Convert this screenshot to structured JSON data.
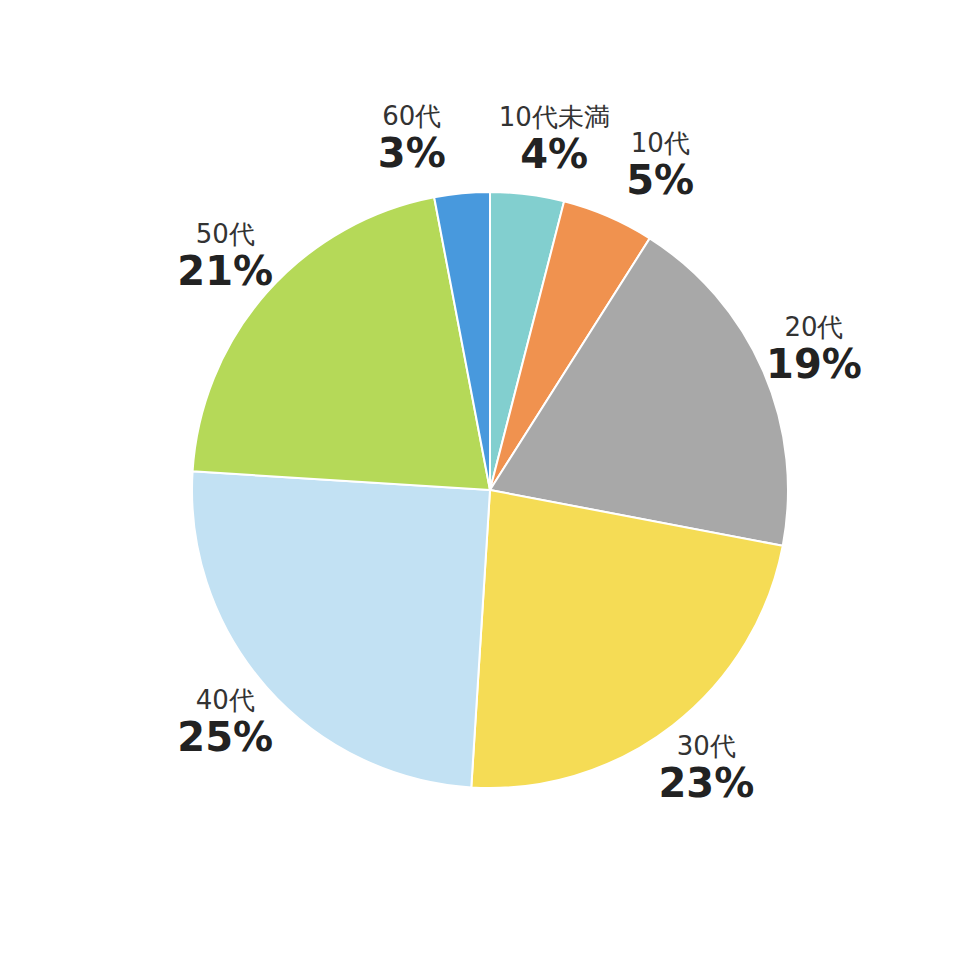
{
  "chart_data": {
    "type": "pie",
    "categories": [
      "10代未満",
      "10代",
      "20代",
      "30代",
      "40代",
      "50代",
      "60代"
    ],
    "values": [
      4,
      5,
      19,
      23,
      25,
      21,
      3
    ],
    "value_labels": [
      "4%",
      "5%",
      "19%",
      "23%",
      "25%",
      "21%",
      "3%"
    ],
    "colors": [
      "#82cfcf",
      "#f0924f",
      "#a8a8a8",
      "#f5dc55",
      "#c2e1f3",
      "#b5d958",
      "#4899dd"
    ],
    "data_labels": true
  }
}
